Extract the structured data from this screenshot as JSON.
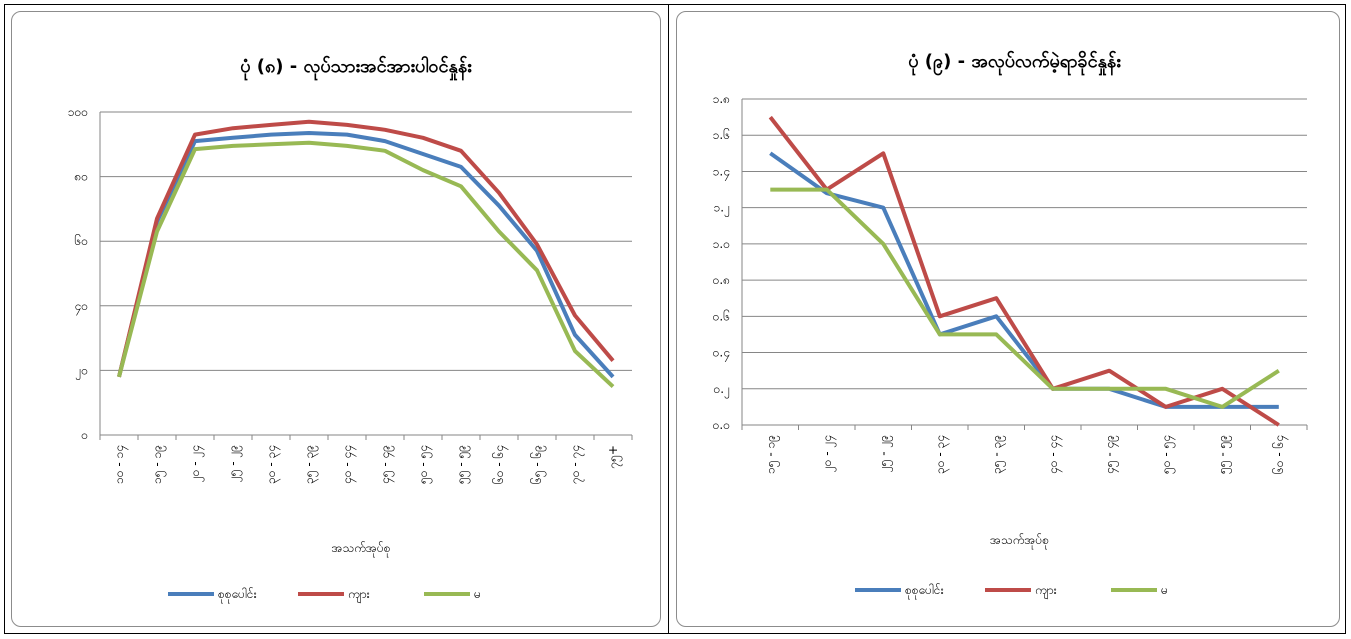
{
  "chart_data": [
    {
      "type": "line",
      "title": "ပုံ (၈) - လုပ်သားအင်အားပါဝင်နှုန်း",
      "xlabel": "အသက်အုပ်စု",
      "ylabel": "",
      "ylim": [
        0,
        100
      ],
      "yticks": [
        "၀",
        "၂၀",
        "၄၀",
        "၆၀",
        "၈၀",
        "၁၀၀"
      ],
      "grid": true,
      "legend_position": "bottom",
      "categories": [
        "၁၀ - ၁၄",
        "၁၅ - ၁၉",
        "၂၀ - ၂၄",
        "၂၅ - ၂၉",
        "၃၀ - ၃၄",
        "၃၅ - ၃၉",
        "၄၀ - ၄၄",
        "၄၅ - ၄၉",
        "၅၀ - ၅၄",
        "၅၅ - ၅၉",
        "၆၀ - ၆၄",
        "၆၅ - ၆၉",
        "၇၀ - ၇၄",
        "၇၅+"
      ],
      "series": [
        {
          "name": "စုစုပေါင်း",
          "color": "#4a7ebb",
          "values": [
            18,
            66,
            91,
            92,
            93,
            93.5,
            93,
            91,
            87,
            83,
            71,
            57,
            31,
            18
          ]
        },
        {
          "name": "ကျား",
          "color": "#be4b48",
          "values": [
            18,
            67,
            93,
            95,
            96,
            97,
            96,
            94.5,
            92,
            88,
            75,
            59,
            37,
            23
          ]
        },
        {
          "name": "မ",
          "color": "#98b954",
          "values": [
            18,
            63,
            88.5,
            89.5,
            90,
            90.5,
            89.5,
            88,
            82,
            77,
            63,
            51,
            26,
            15
          ]
        }
      ]
    },
    {
      "type": "line",
      "title": "ပုံ (၉) - အလုပ်လက်မဲ့ရာခိုင်နှုန်း",
      "xlabel": "အသက်အုပ်စု",
      "ylabel": "",
      "ylim": [
        0,
        1.8
      ],
      "yticks": [
        "၀.၀",
        "၀.၂",
        "၀.၄",
        "၀.၆",
        "၀.၈",
        "၁.၀",
        "၁.၂",
        "၁.၄",
        "၁.၆",
        "၁.၈"
      ],
      "grid": true,
      "legend_position": "bottom",
      "categories": [
        "၁၅ - ၁၉",
        "၂၀ - ၂၄",
        "၂၅ - ၂၉",
        "၃၀ - ၃၄",
        "၃၅ - ၃၉",
        "၄၀ - ၄၄",
        "၄၅ - ၄၉",
        "၅၀ - ၅၄",
        "၅၅ - ၅၉",
        "၆၀ - ၆၄"
      ],
      "series": [
        {
          "name": "စုစုပေါင်း",
          "color": "#4a7ebb",
          "values": [
            1.5,
            1.28,
            1.2,
            0.5,
            0.6,
            0.2,
            0.2,
            0.1,
            0.1,
            0.1
          ]
        },
        {
          "name": "ကျား",
          "color": "#be4b48",
          "values": [
            1.7,
            1.3,
            1.5,
            0.6,
            0.7,
            0.2,
            0.3,
            0.1,
            0.2,
            0.0
          ]
        },
        {
          "name": "မ",
          "color": "#98b954",
          "values": [
            1.3,
            1.3,
            1.0,
            0.5,
            0.5,
            0.2,
            0.2,
            0.2,
            0.1,
            0.3
          ]
        }
      ]
    }
  ]
}
